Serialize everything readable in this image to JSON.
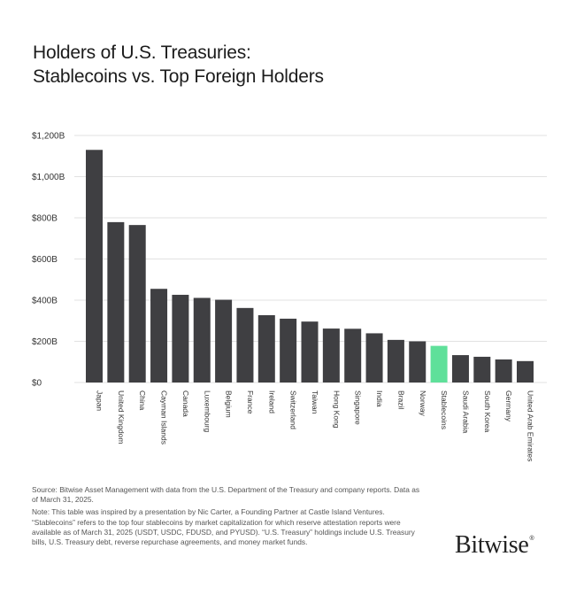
{
  "title": {
    "line1": "Holders of U.S. Treasuries:",
    "line2": "Stablecoins vs. Top Foreign Holders"
  },
  "chart_data": {
    "type": "bar",
    "categories": [
      "Japan",
      "United Kingdom",
      "China",
      "Cayman Islands",
      "Canada",
      "Luxembourg",
      "Belgium",
      "France",
      "Ireland",
      "Switzerland",
      "Taiwan",
      "Hong Kong",
      "Singapore",
      "India",
      "Brazil",
      "Norway",
      "Stablecoins",
      "Saudi Arabia",
      "South Korea",
      "Germany",
      "United Arab Emirates"
    ],
    "values": [
      1130,
      779,
      765,
      455,
      426,
      411,
      402,
      362,
      327,
      310,
      296,
      262,
      261,
      239,
      207,
      200,
      178,
      133,
      125,
      112,
      104
    ],
    "highlight": "Stablecoins",
    "ylim": [
      0,
      1200
    ],
    "yticks": [
      0,
      200,
      400,
      600,
      800,
      1000,
      1200
    ],
    "ytick_labels": [
      "$0",
      "$200B",
      "$400B",
      "$600B",
      "$800B",
      "$1,000B",
      "$1,200B"
    ],
    "grid": "horizontal",
    "xlabel": "",
    "ylabel": "",
    "colors": {
      "bar": "#3f3f42",
      "highlight": "#5fe09a",
      "grid": "#e2e2e2"
    }
  },
  "notes": {
    "source": "Source: Bitwise Asset Management with data from the U.S. Department of the Treasury and company reports. Data as of March 31, 2025.",
    "note": "Note: This table was inspired by a presentation by Nic Carter, a Founding Partner at Castle Island Ventures. “Stablecoins” refers to the top four stablecoins by market capitalization for which reserve attestation reports were available as of March 31, 2025 (USDT, USDC, FDUSD, and PYUSD). “U.S. Treasury” holdings include U.S. Treasury bills, U.S. Treasury debt, reverse repurchase agreements, and money market funds."
  },
  "brand": {
    "name": "Bitwise",
    "mark": "®"
  }
}
